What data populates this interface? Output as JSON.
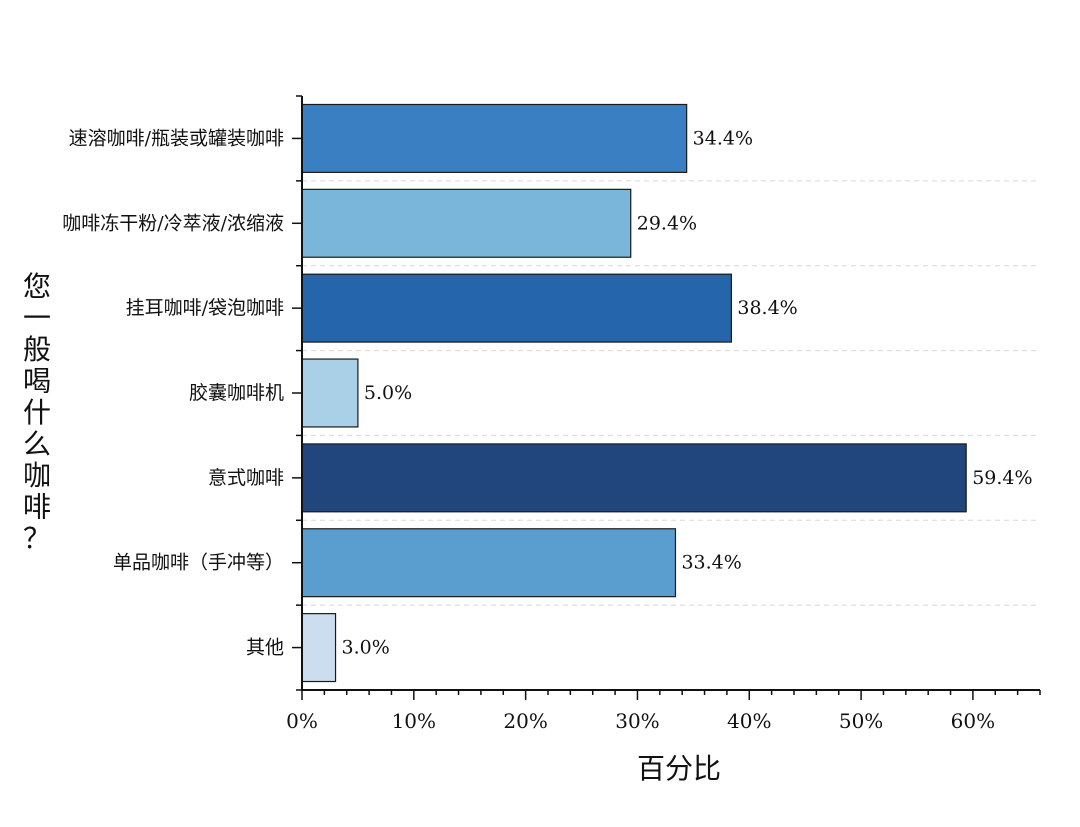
{
  "chart_data": {
    "type": "bar",
    "orientation": "horizontal",
    "title": "",
    "xlabel": "百分比",
    "ylabel": "您一般喝什么咖啡？",
    "xlim": [
      0,
      66
    ],
    "x_ticks": [
      0,
      10,
      20,
      30,
      40,
      50,
      60
    ],
    "x_tick_labels": [
      "0%",
      "10%",
      "20%",
      "30%",
      "40%",
      "50%",
      "60%"
    ],
    "grid": true,
    "legend": "none",
    "categories": [
      "速溶咖啡/瓶装或罐装咖啡",
      "咖啡冻干粉/冷萃液/浓缩液",
      "挂耳咖啡/袋泡咖啡",
      "胶囊咖啡机",
      "意式咖啡",
      "单品咖啡（手冲等）",
      "其他"
    ],
    "values": [
      34.4,
      29.4,
      38.4,
      5.0,
      59.4,
      33.4,
      3.0
    ],
    "data_labels": [
      "34.4%",
      "29.4%",
      "38.4%",
      "5.0%",
      "59.4%",
      "33.4%",
      "3.0%"
    ],
    "colors": [
      "#3a7fc1",
      "#7ab6da",
      "#2565ab",
      "#a9d0e6",
      "#21467e",
      "#5a9ecf",
      "#cbddef"
    ]
  }
}
